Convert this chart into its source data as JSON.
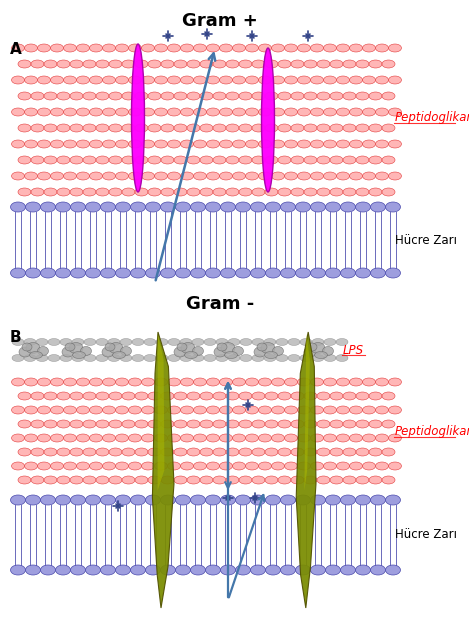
{
  "title_A": "Gram +",
  "title_B": "Gram -",
  "label_A": "A",
  "label_B": "B",
  "peptidoglikan": "Peptidoglikan",
  "hucre_zari": "Hücre Zarı",
  "lps": "LPS",
  "bg_color": "#ffffff",
  "red_ellipse_color": "#ffaaaa",
  "red_ellipse_edge": "#dd2222",
  "blue_ellipse_color": "#9999dd",
  "blue_ellipse_edge": "#4444aa",
  "magenta_protein_color": "#ff00ff",
  "magenta_protein_edge": "#aa00aa",
  "olive_protein_color": "#7a8c00",
  "olive_highlight_color": "#aab800",
  "gray_lps_color": "#aaaaaa",
  "gray_lps_edge": "#666666",
  "arrow_color": "#4477aa",
  "star_color": "#334488",
  "title_fontsize": 13,
  "label_fontsize": 11,
  "annot_fontsize": 8.5,
  "fig_width": 4.69,
  "fig_height": 6.23,
  "dpi": 100
}
